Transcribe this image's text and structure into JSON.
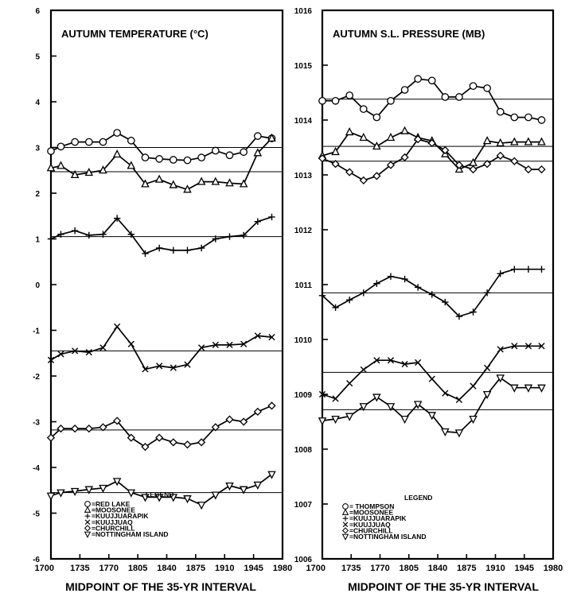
{
  "chart_data": [
    {
      "type": "line",
      "title": "AUTUMN TEMPERATURE (°C)",
      "xlabel": "MIDPOINT OF THE 35-YR INTERVAL",
      "ylabel": "",
      "xlim": [
        1700,
        1980
      ],
      "ylim": [
        -6,
        6
      ],
      "x_ticks": [
        1700,
        1735,
        1770,
        1805,
        1840,
        1875,
        1910,
        1945,
        1980
      ],
      "y_ticks": [
        6,
        5,
        4,
        3,
        2,
        1,
        0,
        -1,
        -2,
        -3,
        -4,
        -5,
        -6
      ],
      "x": [
        1700,
        1712,
        1729,
        1746,
        1763,
        1780,
        1797,
        1814,
        1831,
        1848,
        1865,
        1882,
        1899,
        1916,
        1933,
        1950,
        1967
      ],
      "legend": {
        "title": "LEGEND",
        "entries": [
          "=RED LAKE",
          "=MOOSONEE",
          "=KUUJJUARAPIK",
          "=KUUJJUAQ",
          "=CHURCHILL",
          "=NOTTINGHAM ISLAND"
        ]
      },
      "series": [
        {
          "name": "RED LAKE",
          "marker": "circle",
          "values": [
            2.92,
            3.02,
            3.12,
            3.12,
            3.12,
            3.32,
            3.15,
            2.78,
            2.75,
            2.73,
            2.72,
            2.78,
            2.93,
            2.83,
            2.9,
            3.25,
            3.2
          ],
          "mean_segments": [
            [
              1700,
              1980,
              3.0
            ]
          ]
        },
        {
          "name": "MOOSONEE",
          "marker": "triangle",
          "values": [
            2.55,
            2.6,
            2.4,
            2.45,
            2.5,
            2.85,
            2.6,
            2.2,
            2.3,
            2.18,
            2.08,
            2.25,
            2.25,
            2.22,
            2.2,
            2.88,
            3.2
          ],
          "mean_segments": [
            [
              1700,
              1980,
              2.47
            ]
          ]
        },
        {
          "name": "KUUJJUARAPIK",
          "marker": "plus",
          "values": [
            1.0,
            1.1,
            1.18,
            1.08,
            1.1,
            1.45,
            1.1,
            0.68,
            0.8,
            0.75,
            0.75,
            0.8,
            1.0,
            1.05,
            1.08,
            1.38,
            1.48
          ],
          "mean_segments": [
            [
              1700,
              1980,
              1.05
            ]
          ]
        },
        {
          "name": "KUUJJUAQ",
          "marker": "x",
          "values": [
            -1.65,
            -1.52,
            -1.45,
            -1.48,
            -1.38,
            -0.92,
            -1.3,
            -1.85,
            -1.78,
            -1.82,
            -1.75,
            -1.38,
            -1.32,
            -1.32,
            -1.3,
            -1.12,
            -1.15
          ],
          "mean_segments": [
            [
              1700,
              1980,
              -1.45
            ]
          ]
        },
        {
          "name": "CHURCHILL",
          "marker": "diamond",
          "values": [
            -3.35,
            -3.15,
            -3.15,
            -3.15,
            -3.12,
            -2.98,
            -3.35,
            -3.55,
            -3.35,
            -3.45,
            -3.5,
            -3.45,
            -3.12,
            -2.95,
            -3.0,
            -2.78,
            -2.65
          ],
          "mean_segments": [
            [
              1700,
              1980,
              -3.18
            ]
          ]
        },
        {
          "name": "NOTTINGHAM ISLAND",
          "marker": "down-triangle",
          "values": [
            -4.62,
            -4.55,
            -4.52,
            -4.48,
            -4.45,
            -4.3,
            -4.55,
            -4.65,
            -4.65,
            -4.65,
            -4.68,
            -4.82,
            -4.6,
            -4.4,
            -4.48,
            -4.38,
            -4.15
          ],
          "mean_segments": [
            [
              1700,
              1980,
              -4.55
            ]
          ]
        }
      ]
    },
    {
      "type": "line",
      "title": "AUTUMN S.L. PRESSURE (MB)",
      "xlabel": "MIDPOINT OF THE 35-YR INTERVAL",
      "ylabel": "",
      "xlim": [
        1700,
        1980
      ],
      "ylim": [
        1006,
        1016
      ],
      "x_ticks": [
        1700,
        1735,
        1770,
        1805,
        1840,
        1875,
        1910,
        1945,
        1980
      ],
      "y_ticks": [
        1016,
        1015,
        1014,
        1013,
        1012,
        1011,
        1010,
        1009,
        1008,
        1007,
        1006
      ],
      "x": [
        1700,
        1716,
        1733,
        1750,
        1766,
        1783,
        1800,
        1816,
        1833,
        1849,
        1866,
        1883,
        1900,
        1916,
        1933,
        1950,
        1966
      ],
      "legend": {
        "title": "LEGEND",
        "entries": [
          "= THOMPSON",
          "=MOOSONEE",
          "=KUUJJUARAPIK",
          "=KUUJJUAQ",
          "=CHURCHILL",
          "=NOTTINGHAM ISLAND"
        ]
      },
      "series": [
        {
          "name": "THOMPSON",
          "marker": "circle",
          "values": [
            1014.35,
            1014.35,
            1014.45,
            1014.2,
            1014.05,
            1014.35,
            1014.55,
            1014.75,
            1014.72,
            1014.42,
            1014.42,
            1014.62,
            1014.58,
            1014.15,
            1014.05,
            1014.05,
            1014.0
          ],
          "mean_segments": [
            [
              1700,
              1980,
              1014.38
            ]
          ]
        },
        {
          "name": "MOOSONEE",
          "marker": "triangle",
          "values": [
            1013.35,
            1013.42,
            1013.78,
            1013.68,
            1013.52,
            1013.68,
            1013.8,
            1013.68,
            1013.62,
            1013.38,
            1013.1,
            1013.22,
            1013.62,
            1013.58,
            1013.6,
            1013.6,
            1013.6
          ],
          "mean_segments": [
            [
              1700,
              1980,
              1013.52
            ]
          ]
        },
        {
          "name": "KUUJJUARAPIK",
          "marker": "plus",
          "values": [
            1010.8,
            1010.58,
            1010.72,
            1010.85,
            1011.02,
            1011.15,
            1011.1,
            1010.95,
            1010.82,
            1010.68,
            1010.42,
            1010.5,
            1010.85,
            1011.2,
            1011.28,
            1011.28,
            1011.28
          ],
          "mean_segments": [
            [
              1700,
              1980,
              1010.85
            ]
          ]
        },
        {
          "name": "KUUJJUAQ",
          "marker": "x",
          "values": [
            1009.0,
            1008.92,
            1009.2,
            1009.45,
            1009.62,
            1009.62,
            1009.55,
            1009.58,
            1009.28,
            1009.02,
            1008.9,
            1009.15,
            1009.48,
            1009.82,
            1009.88,
            1009.88,
            1009.88
          ],
          "mean_segments": [
            [
              1700,
              1980,
              1009.4
            ]
          ]
        },
        {
          "name": "CHURCHILL",
          "marker": "diamond",
          "values": [
            1013.3,
            1013.2,
            1013.05,
            1012.9,
            1012.98,
            1013.18,
            1013.32,
            1013.65,
            1013.58,
            1013.45,
            1013.18,
            1013.1,
            1013.2,
            1013.35,
            1013.25,
            1013.1,
            1013.1
          ],
          "mean_segments": [
            [
              1700,
              1980,
              1013.25
            ]
          ]
        },
        {
          "name": "NOTTINGHAM ISLAND",
          "marker": "down-triangle",
          "values": [
            1008.52,
            1008.55,
            1008.6,
            1008.78,
            1008.95,
            1008.78,
            1008.55,
            1008.82,
            1008.62,
            1008.32,
            1008.3,
            1008.55,
            1009.0,
            1009.3,
            1009.12,
            1009.12,
            1009.12
          ],
          "mean_segments": [
            [
              1700,
              1980,
              1008.72
            ]
          ]
        }
      ]
    }
  ]
}
